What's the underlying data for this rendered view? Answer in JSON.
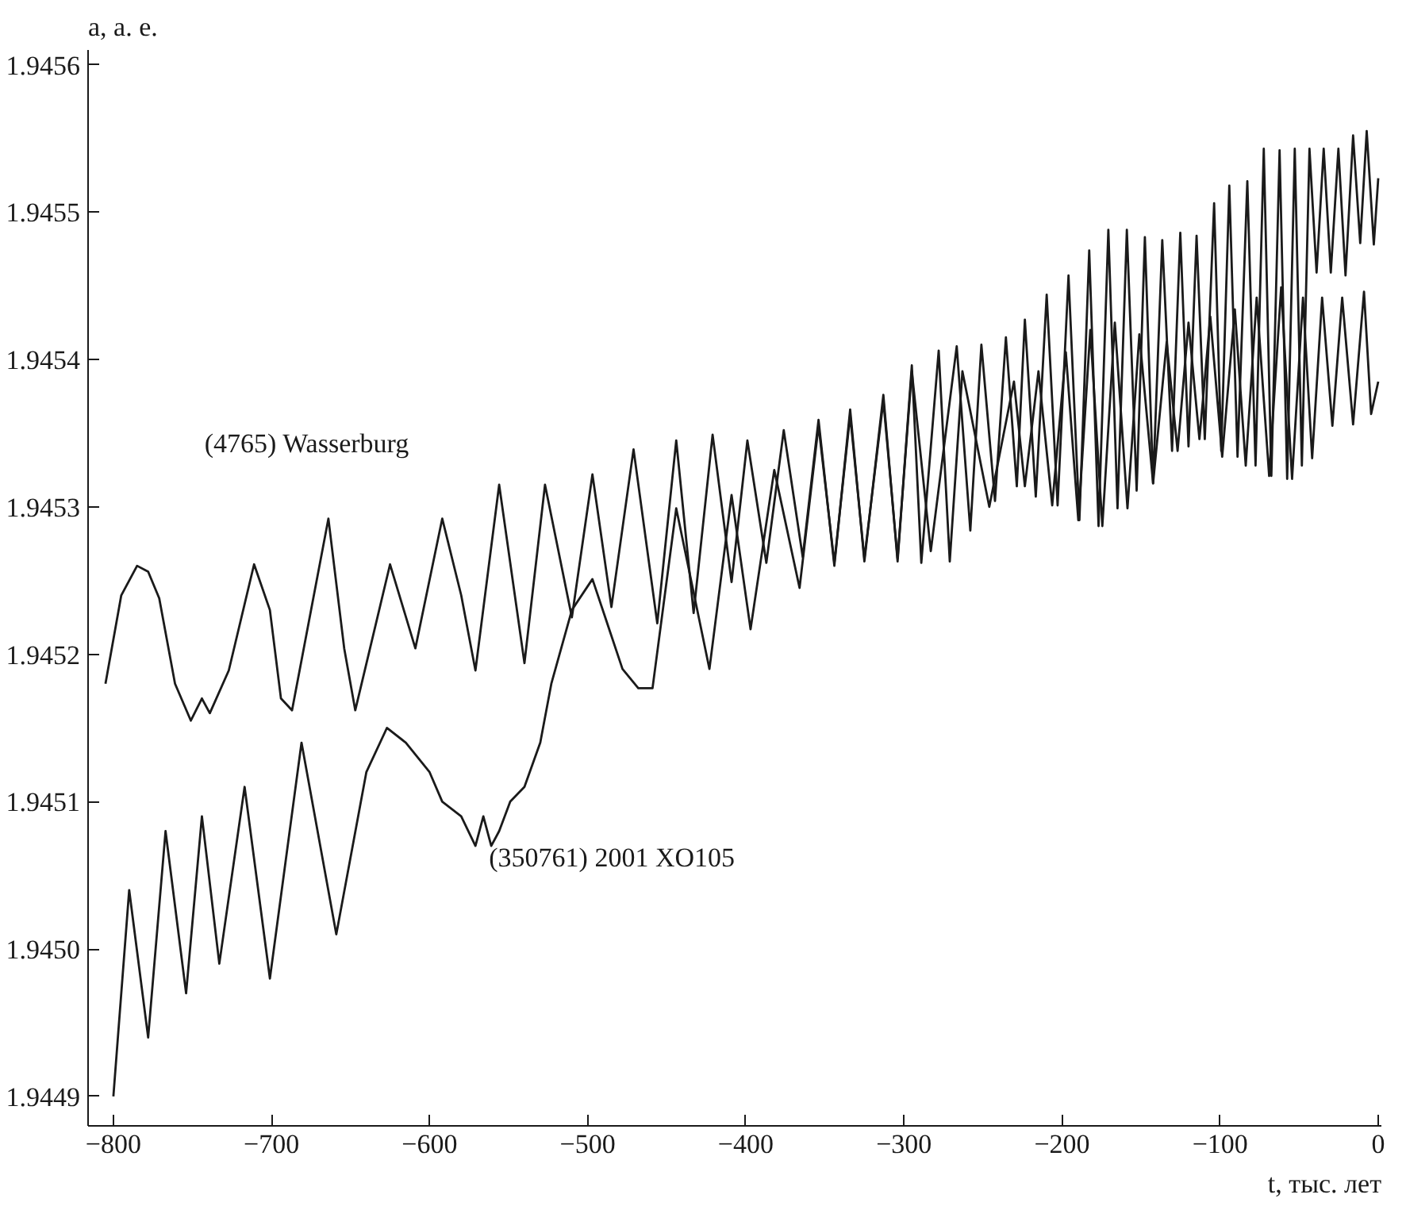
{
  "chart_data": {
    "type": "line",
    "xlabel": "t, тыс. лет",
    "ylabel": "a, а. е.",
    "xlim": [
      -816,
      2
    ],
    "ylim": [
      1.94488,
      1.94561
    ],
    "xticks": [
      {
        "value": -800,
        "label": "−800"
      },
      {
        "value": -700,
        "label": "−700"
      },
      {
        "value": -600,
        "label": "−600"
      },
      {
        "value": -500,
        "label": "−500"
      },
      {
        "value": -400,
        "label": "−400"
      },
      {
        "value": -300,
        "label": "−300"
      },
      {
        "value": -200,
        "label": "−200"
      },
      {
        "value": -100,
        "label": "−100"
      },
      0
    ],
    "yticks": [
      {
        "value": 1.9449,
        "label": "1.9449"
      },
      {
        "value": 1.945,
        "label": "1.9450"
      },
      {
        "value": 1.9451,
        "label": "1.9451"
      },
      {
        "value": 1.9452,
        "label": "1.9452"
      },
      {
        "value": 1.9453,
        "label": "1.9453"
      },
      {
        "value": 1.9454,
        "label": "1.9454"
      },
      {
        "value": 1.9455,
        "label": "1.9455"
      },
      {
        "value": 1.9456,
        "label": "1.9456"
      }
    ],
    "line_style": "solid",
    "series": [
      {
        "name": "(4765) Wasserburg",
        "color": "#1a1a1a",
        "x": [
          -805,
          -795,
          -785,
          -778,
          -771,
          -761,
          -751,
          -744,
          -739,
          -727,
          -711,
          -701,
          -694,
          -687,
          -664,
          -654,
          -647,
          -625,
          -609,
          -592,
          -580,
          -571,
          -556,
          -540,
          -527,
          -510,
          -497,
          -485,
          -471,
          -456,
          -444,
          -433,
          -421,
          -409,
          -399,
          -387,
          -376,
          -364,
          -354,
          -344,
          -334,
          -325,
          -313,
          -304,
          -295,
          -289,
          -278,
          -271,
          -263,
          -246,
          -230.4,
          -223.5,
          -214.9,
          -206.2,
          -197.6,
          -189.7,
          -182.1,
          -174.5,
          -166.6,
          -158.6,
          -151.1,
          -142.4,
          -133.8,
          -126.9,
          -120.0,
          -113.1,
          -106.2,
          -98.7,
          -90.7,
          -83.8,
          -76.9,
          -69.0,
          -61.4,
          -54.5,
          -47.6,
          -41.8,
          -35.5,
          -29.0,
          -22.8,
          -15.9,
          -9.0,
          -4.5,
          0
        ],
        "values": [
          1.94518,
          1.94524,
          1.94526,
          1.945256,
          1.945238,
          1.94518,
          1.945155,
          1.94517,
          1.94516,
          1.945189,
          1.945261,
          1.94523,
          1.94517,
          1.945162,
          1.945292,
          1.945204,
          1.945162,
          1.945261,
          1.945204,
          1.945292,
          1.94524,
          1.945189,
          1.945315,
          1.945194,
          1.945315,
          1.945225,
          1.945322,
          1.945232,
          1.945339,
          1.945221,
          1.945345,
          1.945228,
          1.945349,
          1.945249,
          1.945345,
          1.945262,
          1.945352,
          1.945266,
          1.945359,
          1.94526,
          1.945366,
          1.945263,
          1.945376,
          1.945263,
          1.945396,
          1.945262,
          1.945406,
          1.945263,
          1.945392,
          1.9453,
          1.945385,
          1.945314,
          1.945392,
          1.945301,
          1.945405,
          1.945291,
          1.94542,
          1.945287,
          1.945425,
          1.945299,
          1.945417,
          1.945316,
          1.945412,
          1.945338,
          1.945425,
          1.945346,
          1.945429,
          1.945334,
          1.945434,
          1.945328,
          1.945442,
          1.945321,
          1.945449,
          1.945319,
          1.945442,
          1.945333,
          1.945442,
          1.945355,
          1.945442,
          1.945356,
          1.945446,
          1.945363,
          1.945385
        ]
      },
      {
        "name": "(350761) 2001 XO105",
        "color": "#1a1a1a",
        "x": [
          -800,
          -790,
          -778,
          -767,
          -754,
          -744,
          -733,
          -717,
          -701,
          -681,
          -659,
          -640,
          -627,
          -615,
          -600,
          -592,
          -580,
          -571,
          -566,
          -561,
          -556,
          -549,
          -540,
          -530,
          -523,
          -510,
          -497,
          -478,
          -468,
          -459,
          -444,
          -423,
          -409,
          -397,
          -382,
          -366,
          -354,
          -344,
          -334,
          -325,
          -313,
          -304,
          -295,
          -283,
          -266.6,
          -258.0,
          -251.0,
          -242.4,
          -235.5,
          -228.6,
          -223.5,
          -216.6,
          -209.7,
          -202.8,
          -195.9,
          -189.0,
          -182.8,
          -176.9,
          -170.7,
          -164.9,
          -159.0,
          -152.8,
          -147.6,
          -142.4,
          -136.6,
          -130.4,
          -125.2,
          -120.0,
          -114.9,
          -109.7,
          -103.8,
          -99.3,
          -94.2,
          -89.0,
          -82.8,
          -77.6,
          -72.4,
          -67.6,
          -62.4,
          -57.6,
          -52.8,
          -48.3,
          -43.5,
          -39.0,
          -34.5,
          -30.0,
          -25.2,
          -20.7,
          -15.9,
          -11.4,
          -7.3,
          -2.8,
          0
        ],
        "values": [
          1.9449,
          1.94504,
          1.94494,
          1.94508,
          1.94497,
          1.94509,
          1.94499,
          1.94511,
          1.94498,
          1.94514,
          1.94501,
          1.94512,
          1.94515,
          1.94514,
          1.94512,
          1.9451,
          1.94509,
          1.94507,
          1.94509,
          1.94507,
          1.94508,
          1.9451,
          1.94511,
          1.94514,
          1.94518,
          1.94523,
          1.945251,
          1.94519,
          1.945177,
          1.945177,
          1.945299,
          1.94519,
          1.945308,
          1.945217,
          1.945325,
          1.945245,
          1.945355,
          1.945262,
          1.945362,
          1.945265,
          1.945372,
          1.945265,
          1.945392,
          1.94527,
          1.945409,
          1.945284,
          1.94541,
          1.945304,
          1.945415,
          1.945314,
          1.945427,
          1.945307,
          1.945444,
          1.945301,
          1.945457,
          1.945291,
          1.945474,
          1.945287,
          1.945488,
          1.945299,
          1.945488,
          1.945311,
          1.945483,
          1.945316,
          1.945481,
          1.945338,
          1.945486,
          1.945341,
          1.945484,
          1.945346,
          1.945506,
          1.945338,
          1.945518,
          1.945334,
          1.945521,
          1.945328,
          1.945543,
          1.945321,
          1.945542,
          1.945319,
          1.945543,
          1.945328,
          1.945543,
          1.945459,
          1.945543,
          1.945459,
          1.945543,
          1.945457,
          1.945552,
          1.945479,
          1.945555,
          1.945478,
          1.945523
        ]
      }
    ]
  }
}
